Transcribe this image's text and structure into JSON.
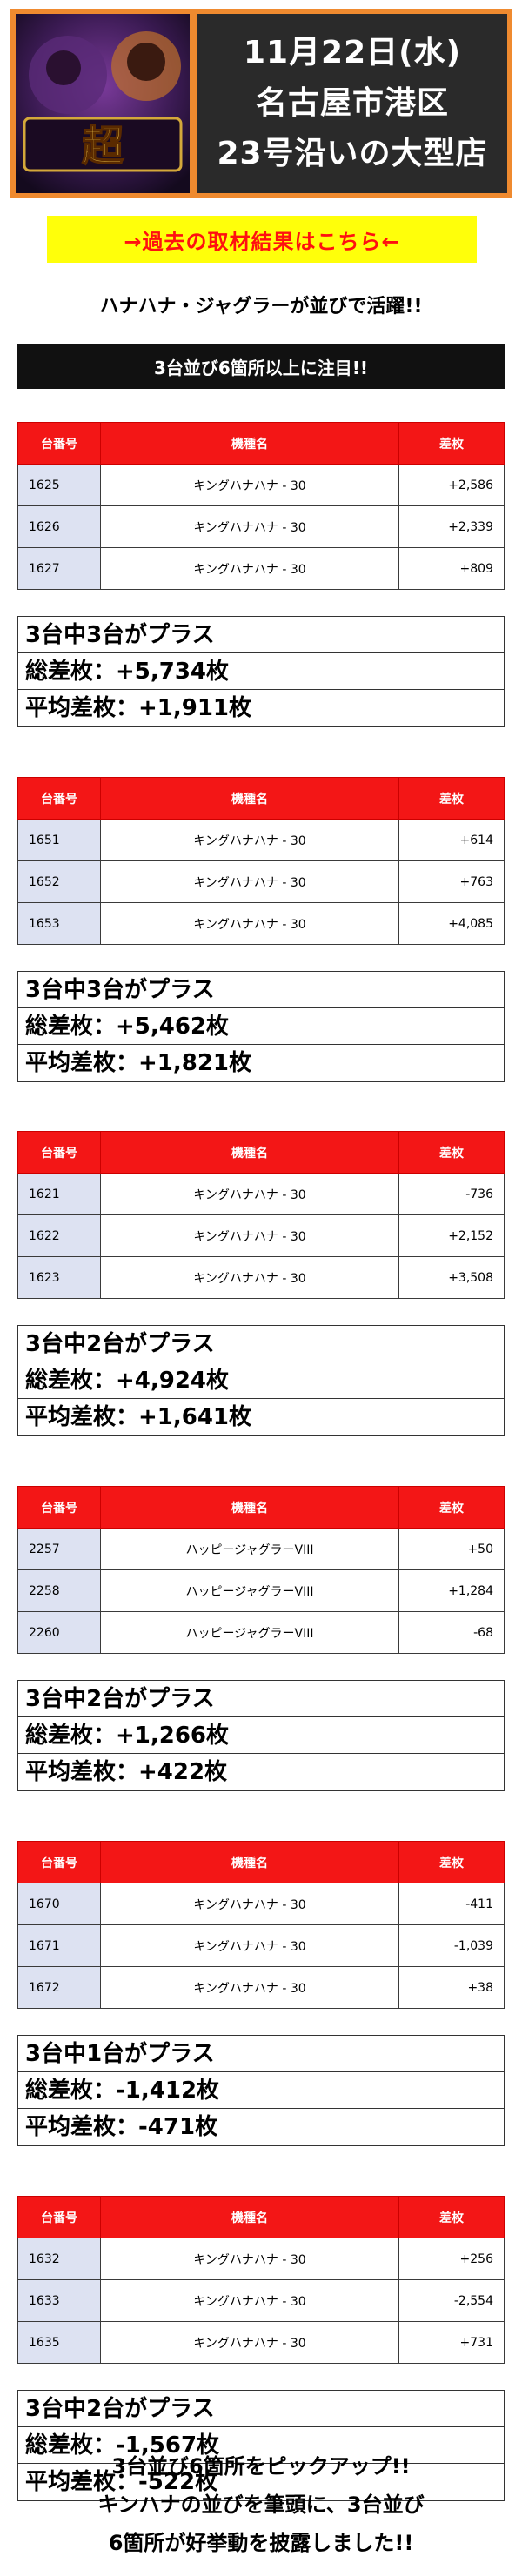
{
  "header": {
    "logo_text": "超",
    "lines": [
      "11月22日(水)",
      "名古屋市港区",
      "23号沿いの大型店"
    ]
  },
  "banner": "→過去の取材結果はこちら←",
  "headline": "ハナハナ・ジャグラーが並びで活躍!!",
  "strip": "3台並び6箇所以上に注目!!",
  "columns": [
    "台番号",
    "機種名",
    "差枚"
  ],
  "groups": [
    {
      "rows": [
        {
          "no": "1625",
          "model": "キングハナハナ - 30",
          "diff": "+2,586"
        },
        {
          "no": "1626",
          "model": "キングハナハナ - 30",
          "diff": "+2,339"
        },
        {
          "no": "1627",
          "model": "キングハナハナ - 30",
          "diff": "+809"
        }
      ],
      "summary": [
        "3台中3台がプラス",
        "総差枚：+5,734枚",
        "平均差枚：+1,911枚"
      ]
    },
    {
      "rows": [
        {
          "no": "1651",
          "model": "キングハナハナ - 30",
          "diff": "+614"
        },
        {
          "no": "1652",
          "model": "キングハナハナ - 30",
          "diff": "+763"
        },
        {
          "no": "1653",
          "model": "キングハナハナ - 30",
          "diff": "+4,085"
        }
      ],
      "summary": [
        "3台中3台がプラス",
        "総差枚：+5,462枚",
        "平均差枚：+1,821枚"
      ]
    },
    {
      "rows": [
        {
          "no": "1621",
          "model": "キングハナハナ - 30",
          "diff": "-736"
        },
        {
          "no": "1622",
          "model": "キングハナハナ - 30",
          "diff": "+2,152"
        },
        {
          "no": "1623",
          "model": "キングハナハナ - 30",
          "diff": "+3,508"
        }
      ],
      "summary": [
        "3台中2台がプラス",
        "総差枚：+4,924枚",
        "平均差枚：+1,641枚"
      ]
    },
    {
      "rows": [
        {
          "no": "2257",
          "model": "ハッピージャグラーVIII",
          "diff": "+50"
        },
        {
          "no": "2258",
          "model": "ハッピージャグラーVIII",
          "diff": "+1,284"
        },
        {
          "no": "2260",
          "model": "ハッピージャグラーVIII",
          "diff": "-68"
        }
      ],
      "summary": [
        "3台中2台がプラス",
        "総差枚：+1,266枚",
        "平均差枚：+422枚"
      ]
    },
    {
      "rows": [
        {
          "no": "1670",
          "model": "キングハナハナ - 30",
          "diff": "-411"
        },
        {
          "no": "1671",
          "model": "キングハナハナ - 30",
          "diff": "-1,039"
        },
        {
          "no": "1672",
          "model": "キングハナハナ - 30",
          "diff": "+38"
        }
      ],
      "summary": [
        "3台中1台がプラス",
        "総差枚：-1,412枚",
        "平均差枚：-471枚"
      ]
    },
    {
      "rows": [
        {
          "no": "1632",
          "model": "キングハナハナ - 30",
          "diff": "+256"
        },
        {
          "no": "1633",
          "model": "キングハナハナ - 30",
          "diff": "-2,554"
        },
        {
          "no": "1635",
          "model": "キングハナハナ - 30",
          "diff": "+731"
        }
      ],
      "summary": [
        "3台中2台がプラス",
        "総差枚：-1,567枚",
        "平均差枚：-522枚"
      ]
    }
  ],
  "footer": [
    "3台並び6箇所をピックアップ!!",
    "キンハナの並びを筆頭に、3台並び",
    "6箇所が好挙動を披露しました!!"
  ]
}
